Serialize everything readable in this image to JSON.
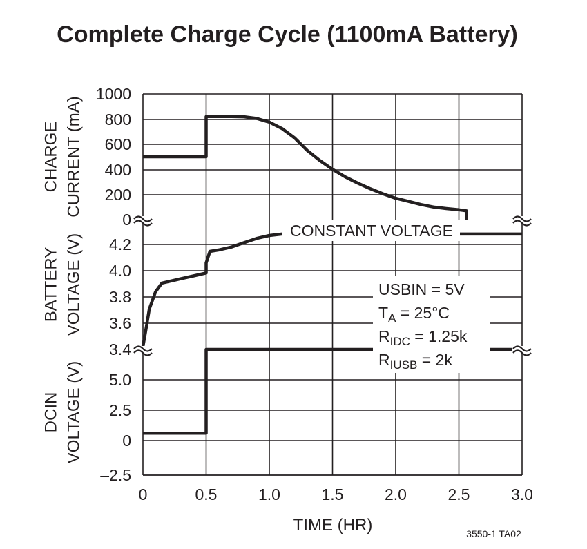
{
  "chart_data": {
    "type": "line",
    "title": "Complete Charge Cycle (1100mA Battery)",
    "footnote": "3550-1 TA02",
    "xlabel": "TIME (HR)",
    "xlim": [
      0,
      3.0
    ],
    "x_ticks": [
      "0",
      "0.5",
      "1.0",
      "1.5",
      "2.0",
      "2.5",
      "3.0"
    ],
    "grid": true,
    "conditions": [
      "USBIN = 5V",
      "T",
      "A",
      " = 25°C",
      "R",
      "IDC",
      " = 1.25k",
      "R",
      "IUSB",
      " = 2k"
    ],
    "panels": [
      {
        "ylabel_lines": [
          "CHARGE",
          "CURRENT (mA)"
        ],
        "ylim": [
          0,
          1000
        ],
        "y_ticks": [
          "0",
          "200",
          "400",
          "600",
          "800",
          "1000"
        ],
        "series": [
          {
            "x": [
              0,
              0.5,
              0.5,
              0.6,
              0.7,
              0.8,
              0.9,
              1.0,
              1.1,
              1.2,
              1.3,
              1.4,
              1.5,
              1.6,
              1.7,
              1.8,
              1.9,
              2.0,
              2.1,
              2.2,
              2.3,
              2.4,
              2.5,
              2.56,
              2.56
            ],
            "y": [
              500,
              500,
              820,
              820,
              820,
              818,
              805,
              775,
              725,
              650,
              550,
              470,
              400,
              340,
              290,
              245,
              205,
              170,
              145,
              120,
              100,
              88,
              78,
              70,
              0
            ]
          }
        ]
      },
      {
        "ylabel_lines": [
          "BATTERY",
          "VOLTAGE (V)"
        ],
        "ylim": [
          3.4,
          4.3
        ],
        "y_ticks": [
          "3.4",
          "3.6",
          "3.8",
          "4.0",
          "4.2"
        ],
        "annotation": "CONSTANT VOLTAGE",
        "series": [
          {
            "x": [
              0,
              0.02,
              0.05,
              0.1,
              0.15,
              0.2,
              0.3,
              0.4,
              0.5,
              0.5,
              0.53,
              0.6,
              0.7,
              0.8,
              0.9,
              1.0,
              1.1,
              1.2,
              1.3,
              2.0,
              3.0
            ],
            "y": [
              3.42,
              3.52,
              3.68,
              3.8,
              3.86,
              3.87,
              3.89,
              3.91,
              3.93,
              4.0,
              4.08,
              4.09,
              4.11,
              4.14,
              4.17,
              4.19,
              4.2,
              4.2,
              4.2,
              4.2,
              4.2
            ]
          }
        ]
      },
      {
        "ylabel_lines": [
          "DCIN",
          "VOLTAGE (V)"
        ],
        "ylim": [
          -2.5,
          5.0
        ],
        "y_ticks": [
          "–2.5",
          "0",
          "2.5",
          "5.0"
        ],
        "series": [
          {
            "x": [
              0,
              0.5,
              0.5,
              3.0
            ],
            "y": [
              0,
              0,
              5.0,
              5.0
            ]
          }
        ]
      }
    ]
  }
}
